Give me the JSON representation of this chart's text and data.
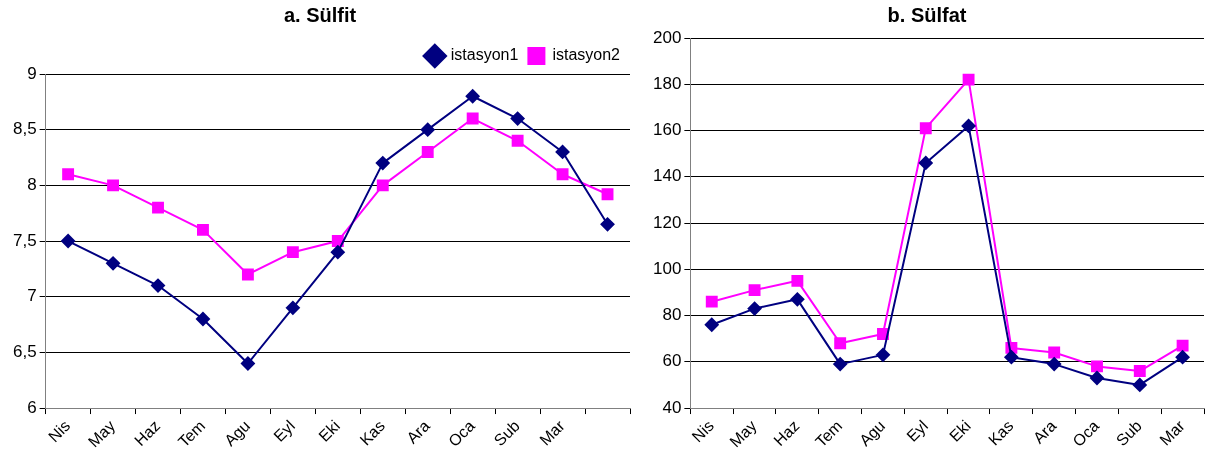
{
  "chart_data": [
    {
      "type": "line",
      "title": "a. Sülfit",
      "categories": [
        "Nis",
        "May",
        "Haz",
        "Tem",
        "Agu",
        "Eyl",
        "Eki",
        "Kas",
        "Ara",
        "Oca",
        "Sub",
        "Mar",
        null
      ],
      "series": [
        {
          "name": "istasyon1",
          "color": "#000080",
          "marker": "diamond",
          "values": [
            7.5,
            7.3,
            7.1,
            6.8,
            6.4,
            6.9,
            7.4,
            8.2,
            8.5,
            8.8,
            8.6,
            8.3,
            7.65
          ]
        },
        {
          "name": "istasyon2",
          "color": "#ff00ff",
          "marker": "square",
          "values": [
            8.1,
            8.0,
            7.8,
            7.6,
            7.2,
            7.4,
            7.5,
            8.0,
            8.3,
            8.6,
            8.4,
            8.1,
            7.92
          ]
        }
      ],
      "ylim": [
        6,
        9
      ],
      "yticks": [
        6,
        {
          "value": 6.5,
          "label": "6,5"
        },
        7,
        {
          "value": 7.5,
          "label": "7,5"
        },
        8,
        {
          "value": 8.5,
          "label": "8,5"
        },
        9
      ],
      "grid": "y",
      "legend": "top right",
      "line_style": "solid"
    },
    {
      "type": "line",
      "title": "b. Sülfat",
      "categories": [
        "Nis",
        "May",
        "Haz",
        "Tem",
        "Agu",
        "Eyl",
        "Eki",
        "Kas",
        "Ara",
        "Oca",
        "Sub",
        "Mar"
      ],
      "series": [
        {
          "color": "#000080",
          "marker": "diamond",
          "values": [
            76,
            83,
            87,
            59,
            63,
            146,
            162,
            62,
            59,
            53,
            50,
            62
          ]
        },
        {
          "color": "#ff00ff",
          "marker": "square",
          "values": [
            86,
            91,
            95,
            68,
            72,
            161,
            182,
            66,
            64,
            58,
            56,
            67
          ]
        }
      ],
      "ylim": [
        40,
        200
      ],
      "yticks": [
        40,
        60,
        80,
        100,
        120,
        140,
        160,
        180,
        200
      ],
      "grid": "y",
      "legend": false,
      "line_style": "solid"
    }
  ]
}
